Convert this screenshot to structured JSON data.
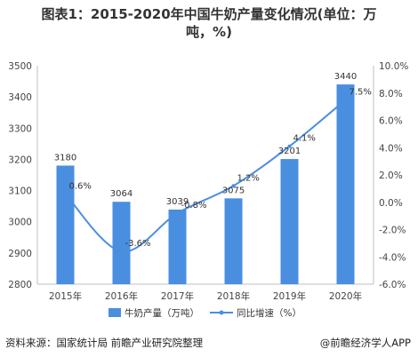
{
  "title_line1": "图表1：2015-2020年中国牛奶产量变化情况(单位：万",
  "title_line2": "吨，%)",
  "source": "资料来源：国家统计局 前瞻产业研究院整理",
  "brand": "@前瞻经济学人APP",
  "chart_data": {
    "type": "bar",
    "categories": [
      "2015年",
      "2016年",
      "2017年",
      "2018年",
      "2019年",
      "2020年"
    ],
    "series": [
      {
        "name": "牛奶产量（万吨）",
        "type": "bar",
        "axis": "left",
        "values": [
          3180,
          3064,
          3039,
          3075,
          3201,
          3440
        ],
        "labels": [
          "3180",
          "3064",
          "3039",
          "3075",
          "3201",
          "3440"
        ]
      },
      {
        "name": "同比增速（%）",
        "type": "line",
        "axis": "right",
        "values": [
          0.6,
          -3.6,
          -0.8,
          1.2,
          4.1,
          7.5
        ],
        "labels": [
          "0.6%",
          "-3.6%",
          "-0.8%",
          "1.2%",
          "4.1%",
          "7.5%"
        ]
      }
    ],
    "y_left": {
      "min": 2800,
      "max": 3500,
      "ticks": [
        "2800",
        "2900",
        "3000",
        "3100",
        "3200",
        "3300",
        "3400",
        "3500"
      ]
    },
    "y_right": {
      "min": -6,
      "max": 10,
      "ticks": [
        "-6.0%",
        "-4.0%",
        "-2.0%",
        "0.0%",
        "2.0%",
        "4.0%",
        "6.0%",
        "8.0%",
        "10.0%"
      ]
    },
    "colors": {
      "bar": "#4a8ee0",
      "line": "#4a8ee0",
      "axis": "#bfbfbf"
    },
    "grid": false,
    "legend": "bottom"
  }
}
